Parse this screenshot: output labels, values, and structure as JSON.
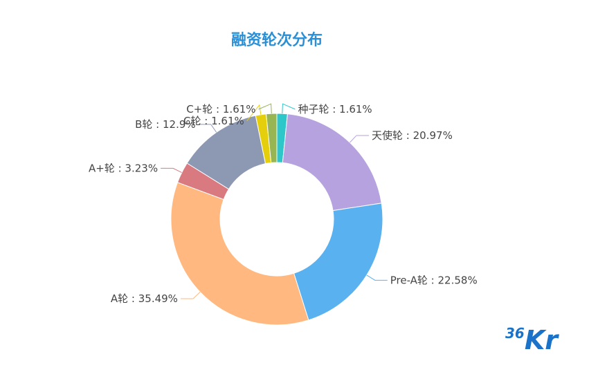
{
  "chart_data": {
    "type": "pie",
    "donut": true,
    "title": "融资轮次分布",
    "slices": [
      {
        "name": "种子轮",
        "value": 1.61,
        "label": "种子轮 : 1.61%",
        "color": "#2ec7c9"
      },
      {
        "name": "天使轮",
        "value": 20.97,
        "label": "天使轮 : 20.97%",
        "color": "#b6a2de"
      },
      {
        "name": "Pre-A轮",
        "value": 22.58,
        "label": "Pre-A轮 : 22.58%",
        "color": "#5ab1ef"
      },
      {
        "name": "A轮",
        "value": 35.49,
        "label": "A轮 : 35.49%",
        "color": "#ffb980"
      },
      {
        "name": "A+轮",
        "value": 3.23,
        "label": "A+轮 : 3.23%",
        "color": "#d87a80"
      },
      {
        "name": "B轮",
        "value": 12.9,
        "label": "B轮 : 12.9%",
        "color": "#8d98b3"
      },
      {
        "name": "C轮",
        "value": 1.61,
        "label": "C轮 : 1.61%",
        "color": "#e5cf0d"
      },
      {
        "name": "C+轮",
        "value": 1.61,
        "label": "C+轮 : 1.61%",
        "color": "#97b552"
      }
    ]
  },
  "logo": {
    "small": "36",
    "big": "Kr"
  }
}
